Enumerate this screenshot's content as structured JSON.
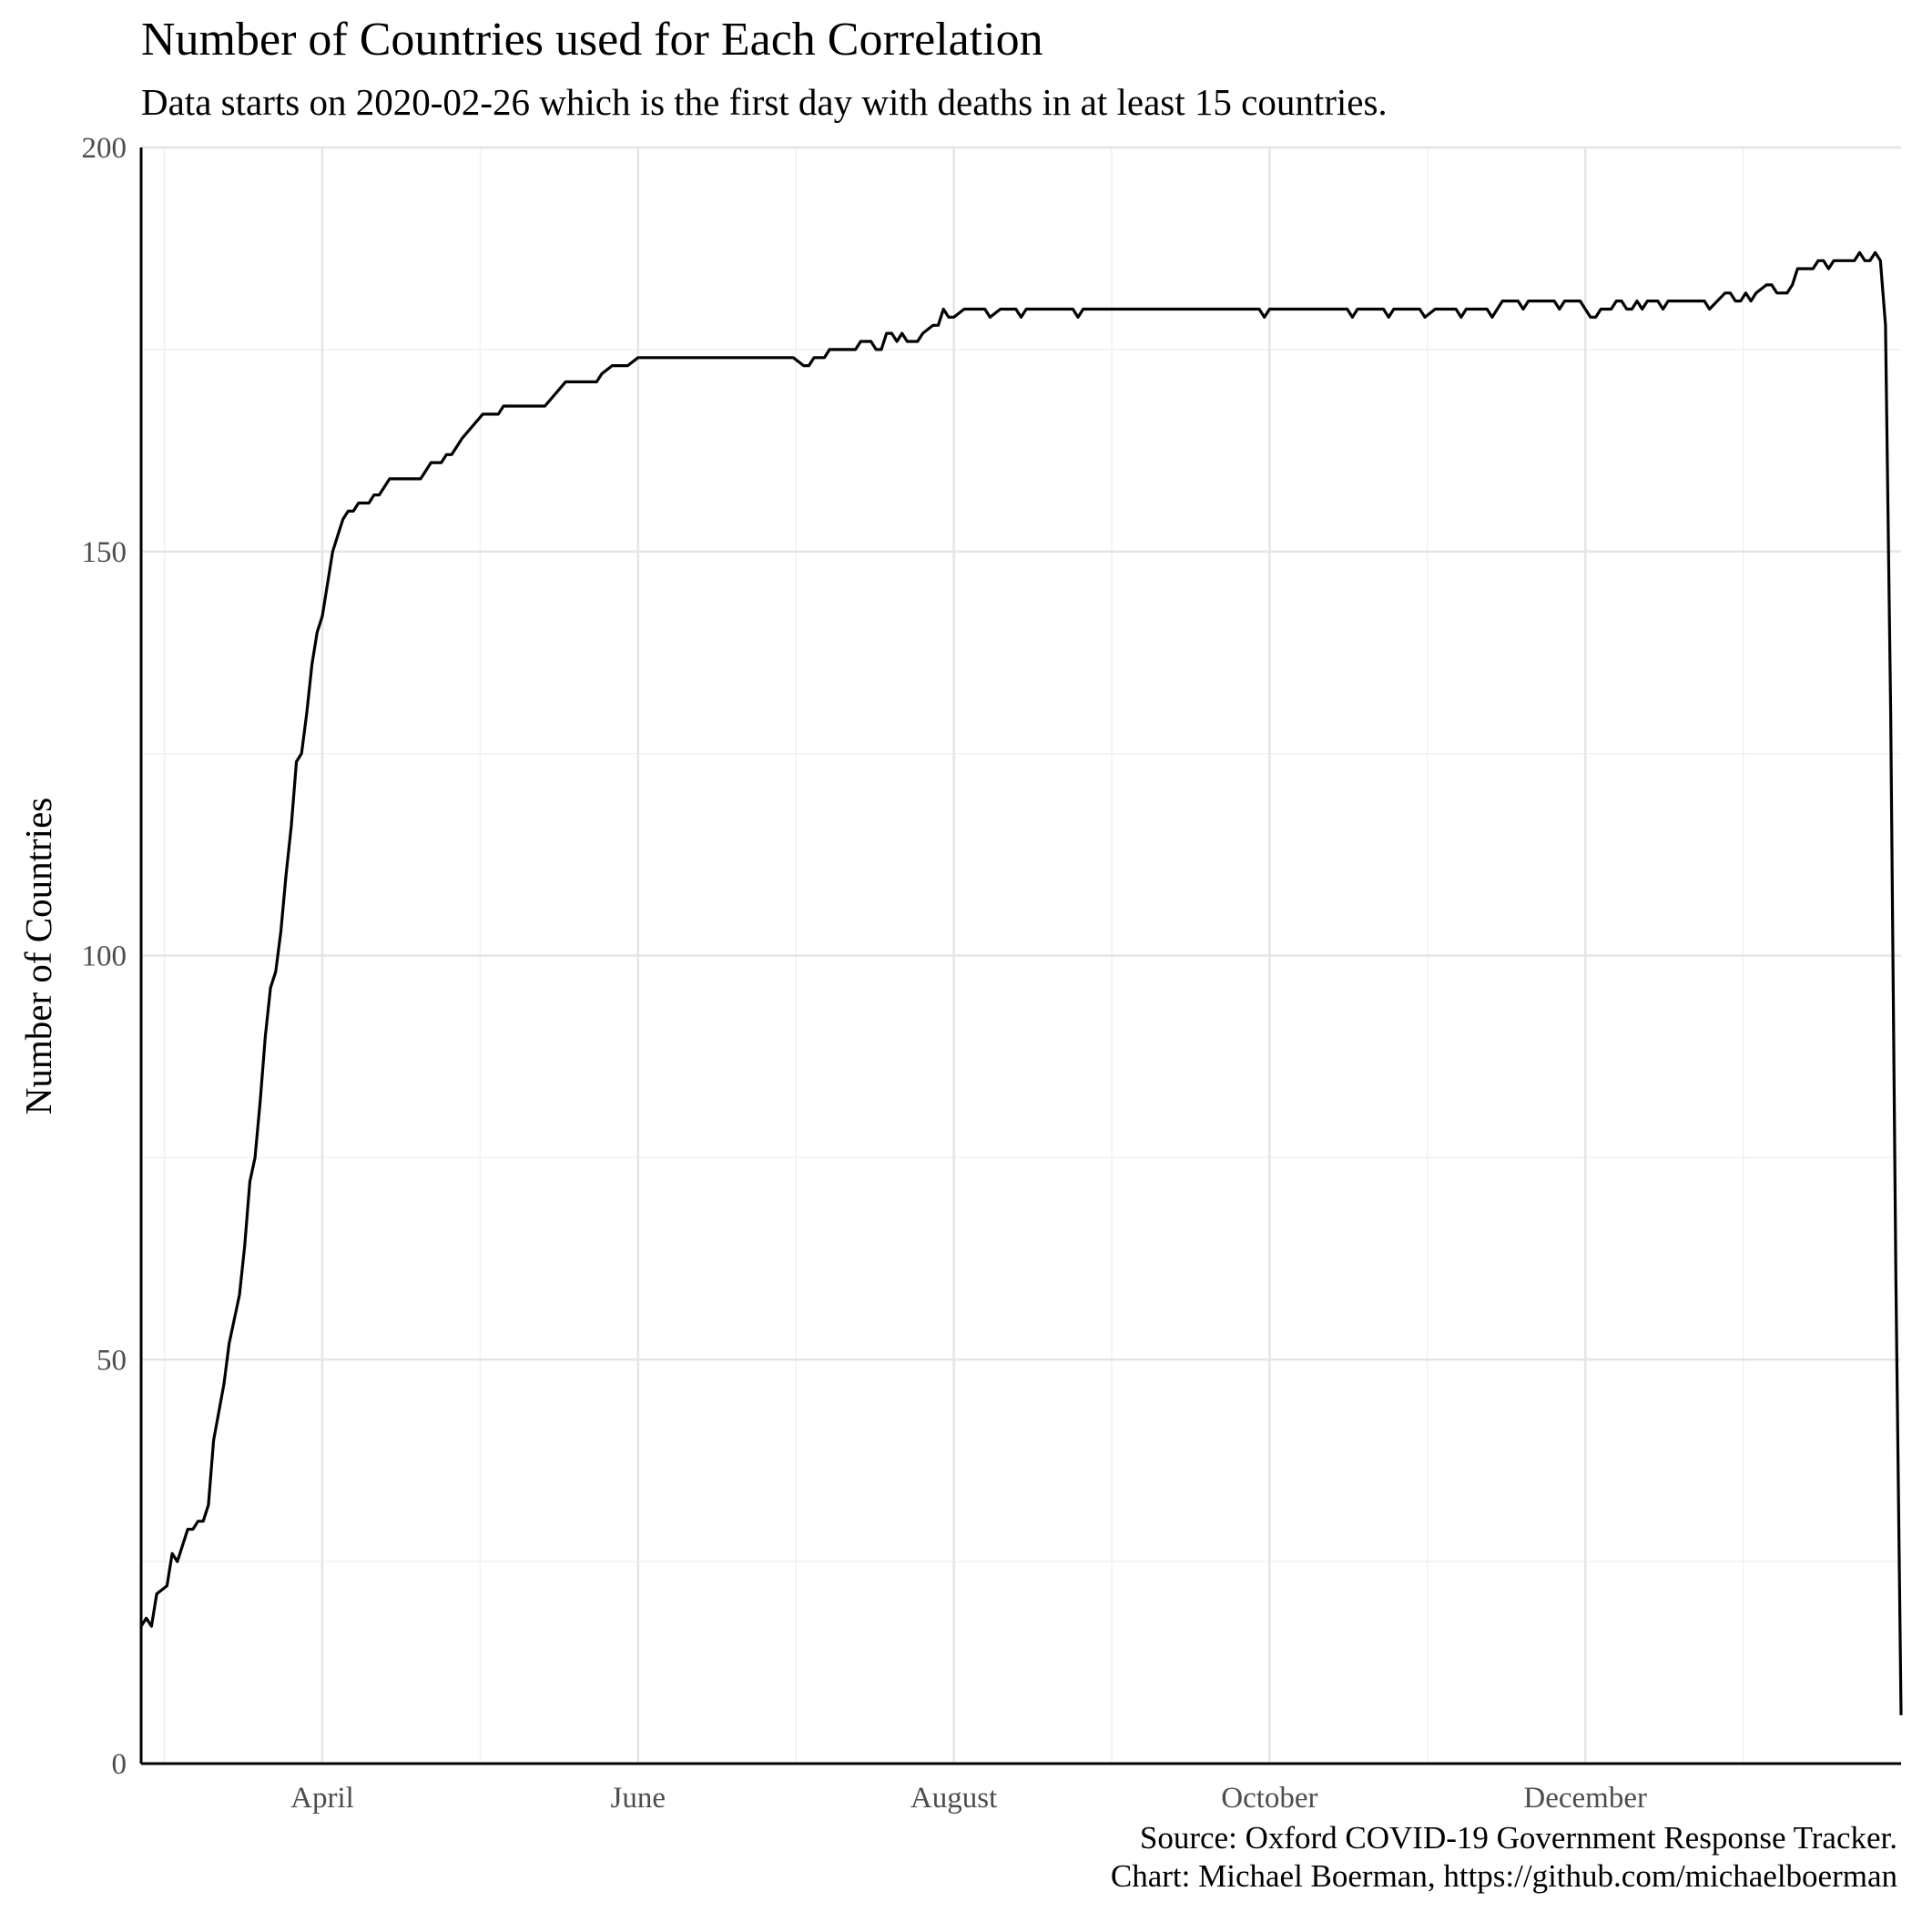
{
  "chart_data": {
    "type": "line",
    "title": "Number of Countries used for Each Correlation",
    "subtitle": "Data starts on 2020-02-26 which is the first day with deaths in at least 15 countries.",
    "xlabel": "",
    "ylabel": "Number of Countries",
    "xlim": [
      "2020-02-26",
      "2021-01-31"
    ],
    "ylim": [
      0,
      200
    ],
    "y_ticks": [
      0,
      50,
      100,
      150,
      200
    ],
    "x_ticks": [
      {
        "date": "2020-04-01",
        "label": "April"
      },
      {
        "date": "2020-06-01",
        "label": "June"
      },
      {
        "date": "2020-08-01",
        "label": "August"
      },
      {
        "date": "2020-10-01",
        "label": "October"
      },
      {
        "date": "2020-12-01",
        "label": "December"
      }
    ],
    "grid": true,
    "series": [
      {
        "color": "#000000",
        "points": [
          [
            "2020-02-26",
            17
          ],
          [
            "2020-02-27",
            18
          ],
          [
            "2020-02-28",
            17
          ],
          [
            "2020-02-29",
            21
          ],
          [
            "2020-03-02",
            22
          ],
          [
            "2020-03-03",
            26
          ],
          [
            "2020-03-04",
            25
          ],
          [
            "2020-03-06",
            29
          ],
          [
            "2020-03-07",
            29
          ],
          [
            "2020-03-08",
            30
          ],
          [
            "2020-03-09",
            30
          ],
          [
            "2020-03-10",
            32
          ],
          [
            "2020-03-11",
            40
          ],
          [
            "2020-03-13",
            47
          ],
          [
            "2020-03-14",
            52
          ],
          [
            "2020-03-16",
            58
          ],
          [
            "2020-03-17",
            64
          ],
          [
            "2020-03-18",
            72
          ],
          [
            "2020-03-19",
            75
          ],
          [
            "2020-03-20",
            82
          ],
          [
            "2020-03-21",
            90
          ],
          [
            "2020-03-22",
            96
          ],
          [
            "2020-03-23",
            98
          ],
          [
            "2020-03-24",
            103
          ],
          [
            "2020-03-25",
            110
          ],
          [
            "2020-03-26",
            116
          ],
          [
            "2020-03-27",
            124
          ],
          [
            "2020-03-28",
            125
          ],
          [
            "2020-03-29",
            130
          ],
          [
            "2020-03-30",
            136
          ],
          [
            "2020-03-31",
            140
          ],
          [
            "2020-04-01",
            142
          ],
          [
            "2020-04-02",
            146
          ],
          [
            "2020-04-03",
            150
          ],
          [
            "2020-04-04",
            152
          ],
          [
            "2020-04-05",
            154
          ],
          [
            "2020-04-06",
            155
          ],
          [
            "2020-04-07",
            155
          ],
          [
            "2020-04-08",
            156
          ],
          [
            "2020-04-10",
            156
          ],
          [
            "2020-04-11",
            157
          ],
          [
            "2020-04-12",
            157
          ],
          [
            "2020-04-14",
            159
          ],
          [
            "2020-04-20",
            159
          ],
          [
            "2020-04-22",
            161
          ],
          [
            "2020-04-24",
            161
          ],
          [
            "2020-04-25",
            162
          ],
          [
            "2020-04-26",
            162
          ],
          [
            "2020-04-28",
            164
          ],
          [
            "2020-05-02",
            167
          ],
          [
            "2020-05-05",
            167
          ],
          [
            "2020-05-06",
            168
          ],
          [
            "2020-05-14",
            168
          ],
          [
            "2020-05-18",
            171
          ],
          [
            "2020-05-24",
            171
          ],
          [
            "2020-05-25",
            172
          ],
          [
            "2020-05-27",
            173
          ],
          [
            "2020-05-30",
            173
          ],
          [
            "2020-06-01",
            174
          ],
          [
            "2020-07-01",
            174
          ],
          [
            "2020-07-03",
            173
          ],
          [
            "2020-07-04",
            173
          ],
          [
            "2020-07-05",
            174
          ],
          [
            "2020-07-07",
            174
          ],
          [
            "2020-07-08",
            175
          ],
          [
            "2020-07-13",
            175
          ],
          [
            "2020-07-14",
            176
          ],
          [
            "2020-07-16",
            176
          ],
          [
            "2020-07-17",
            175
          ],
          [
            "2020-07-18",
            175
          ],
          [
            "2020-07-19",
            177
          ],
          [
            "2020-07-20",
            177
          ],
          [
            "2020-07-21",
            176
          ],
          [
            "2020-07-22",
            177
          ],
          [
            "2020-07-23",
            176
          ],
          [
            "2020-07-25",
            176
          ],
          [
            "2020-07-26",
            177
          ],
          [
            "2020-07-28",
            178
          ],
          [
            "2020-07-29",
            178
          ],
          [
            "2020-07-30",
            180
          ],
          [
            "2020-07-31",
            179
          ],
          [
            "2020-08-01",
            179
          ],
          [
            "2020-08-03",
            180
          ],
          [
            "2020-08-07",
            180
          ],
          [
            "2020-08-08",
            179
          ],
          [
            "2020-08-10",
            180
          ],
          [
            "2020-08-13",
            180
          ],
          [
            "2020-08-14",
            179
          ],
          [
            "2020-08-15",
            180
          ],
          [
            "2020-08-24",
            180
          ],
          [
            "2020-08-25",
            179
          ],
          [
            "2020-08-26",
            180
          ],
          [
            "2020-09-29",
            180
          ],
          [
            "2020-09-30",
            179
          ],
          [
            "2020-10-01",
            180
          ],
          [
            "2020-10-16",
            180
          ],
          [
            "2020-10-17",
            179
          ],
          [
            "2020-10-18",
            180
          ],
          [
            "2020-10-23",
            180
          ],
          [
            "2020-10-24",
            179
          ],
          [
            "2020-10-25",
            180
          ],
          [
            "2020-10-30",
            180
          ],
          [
            "2020-10-31",
            179
          ],
          [
            "2020-11-02",
            180
          ],
          [
            "2020-11-06",
            180
          ],
          [
            "2020-11-07",
            179
          ],
          [
            "2020-11-08",
            180
          ],
          [
            "2020-11-11",
            180
          ],
          [
            "2020-11-12",
            180
          ],
          [
            "2020-11-13",
            179
          ],
          [
            "2020-11-14",
            180
          ],
          [
            "2020-11-15",
            181
          ],
          [
            "2020-11-18",
            181
          ],
          [
            "2020-11-19",
            180
          ],
          [
            "2020-11-20",
            181
          ],
          [
            "2020-11-25",
            181
          ],
          [
            "2020-11-26",
            180
          ],
          [
            "2020-11-27",
            181
          ],
          [
            "2020-11-30",
            181
          ],
          [
            "2020-12-01",
            180
          ],
          [
            "2020-12-02",
            179
          ],
          [
            "2020-12-03",
            179
          ],
          [
            "2020-12-04",
            180
          ],
          [
            "2020-12-06",
            180
          ],
          [
            "2020-12-07",
            181
          ],
          [
            "2020-12-08",
            181
          ],
          [
            "2020-12-09",
            180
          ],
          [
            "2020-12-10",
            180
          ],
          [
            "2020-12-11",
            181
          ],
          [
            "2020-12-12",
            180
          ],
          [
            "2020-12-13",
            181
          ],
          [
            "2020-12-15",
            181
          ],
          [
            "2020-12-16",
            180
          ],
          [
            "2020-12-17",
            181
          ],
          [
            "2020-12-24",
            181
          ],
          [
            "2020-12-25",
            180
          ],
          [
            "2020-12-28",
            182
          ],
          [
            "2020-12-29",
            182
          ],
          [
            "2020-12-30",
            181
          ],
          [
            "2020-12-31",
            181
          ],
          [
            "2021-01-01",
            182
          ],
          [
            "2021-01-02",
            181
          ],
          [
            "2021-01-03",
            182
          ],
          [
            "2021-01-05",
            183
          ],
          [
            "2021-01-06",
            183
          ],
          [
            "2021-01-07",
            182
          ],
          [
            "2021-01-09",
            182
          ],
          [
            "2021-01-10",
            183
          ],
          [
            "2021-01-11",
            185
          ],
          [
            "2021-01-14",
            185
          ],
          [
            "2021-01-15",
            186
          ],
          [
            "2021-01-16",
            186
          ],
          [
            "2021-01-17",
            185
          ],
          [
            "2021-01-18",
            186
          ],
          [
            "2021-01-22",
            186
          ],
          [
            "2021-01-23",
            187
          ],
          [
            "2021-01-24",
            186
          ],
          [
            "2021-01-25",
            186
          ],
          [
            "2021-01-26",
            187
          ],
          [
            "2021-01-27",
            186
          ],
          [
            "2021-01-28",
            178
          ],
          [
            "2021-01-29",
            130
          ],
          [
            "2021-01-30",
            60
          ],
          [
            "2021-01-31",
            6
          ]
        ]
      }
    ]
  },
  "caption": {
    "line1": "Source: Oxford COVID-19 Government Response Tracker.",
    "line2": "Chart: Michael Boerman, https://github.com/michaelboerman"
  }
}
